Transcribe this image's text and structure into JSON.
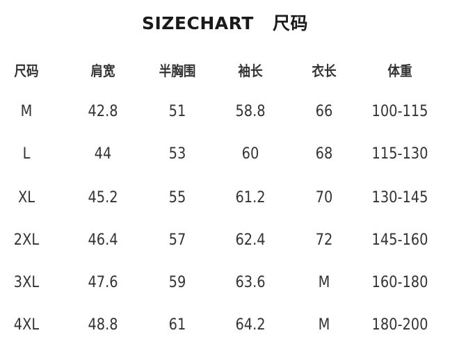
{
  "title": {
    "en": "SIZECHART",
    "cn": "尺码"
  },
  "table": {
    "headers": [
      "尺码",
      "肩宽",
      "半胸围",
      "袖长",
      "衣长",
      "体重"
    ],
    "rows": [
      [
        "M",
        "42.8",
        "51",
        "58.8",
        "66",
        "100-115"
      ],
      [
        "L",
        "44",
        "53",
        "60",
        "68",
        "115-130"
      ],
      [
        "XL",
        "45.2",
        "55",
        "61.2",
        "70",
        "130-145"
      ],
      [
        "2XL",
        "46.4",
        "57",
        "62.4",
        "72",
        "145-160"
      ],
      [
        "3XL",
        "47.6",
        "59",
        "63.6",
        "M",
        "160-180"
      ],
      [
        "4XL",
        "48.8",
        "61",
        "64.2",
        "M",
        "180-200"
      ]
    ]
  }
}
